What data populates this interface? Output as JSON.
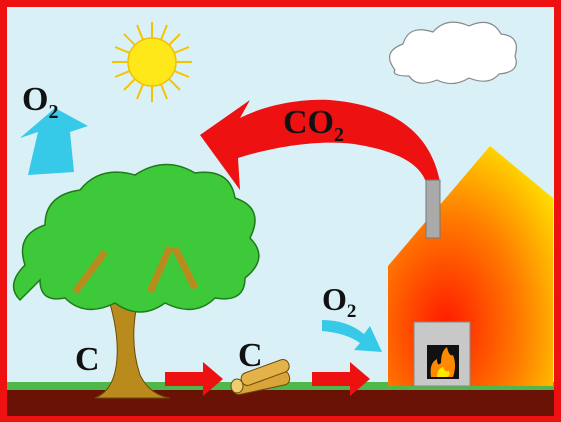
{
  "labels": {
    "tree_oxygen": {
      "main": "O",
      "sub": "2"
    },
    "carbon_dioxide": {
      "main": "CO",
      "sub": "2"
    },
    "tree_carbon": "C",
    "wood_carbon": "C",
    "fire_oxygen": {
      "main": "O",
      "sub": "2"
    }
  }
}
